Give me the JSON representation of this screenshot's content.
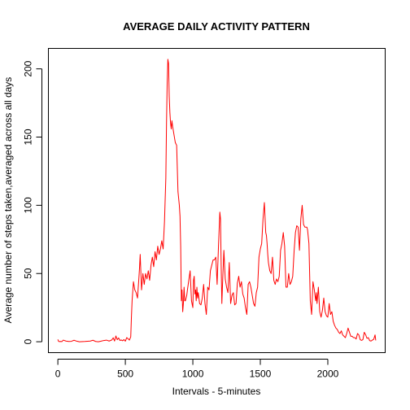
{
  "chart_data": {
    "type": "line",
    "title": "AVERAGE DAILY ACTIVITY PATTERN",
    "xlabel": "Intervals - 5-minutes",
    "ylabel": "Average number of steps taken,averaged across all days",
    "xlim": [
      -70,
      2425
    ],
    "ylim": [
      -8,
      215
    ],
    "x_ticks": [
      0,
      500,
      1000,
      1500,
      2000
    ],
    "y_ticks": [
      0,
      50,
      100,
      150,
      200
    ],
    "line_color": "#ff0000",
    "series": [
      {
        "x": [
          0,
          5,
          10,
          20,
          30,
          40,
          60,
          80,
          100,
          120,
          140,
          160,
          200,
          240,
          260,
          280,
          300,
          320,
          340,
          360,
          380,
          400,
          410,
          420,
          430,
          440,
          450,
          460,
          470,
          480,
          490,
          500,
          510,
          520,
          530,
          540,
          545,
          550,
          560,
          570,
          580,
          590,
          600,
          605,
          610,
          620,
          630,
          640,
          650,
          660,
          670,
          680,
          690,
          700,
          710,
          720,
          730,
          740,
          750,
          760,
          770,
          780,
          790,
          800,
          805,
          810,
          815,
          820,
          825,
          830,
          835,
          840,
          845,
          850,
          860,
          870,
          880,
          890,
          900,
          905,
          910,
          915,
          920,
          925,
          930,
          935,
          940,
          945,
          950,
          955,
          960,
          970,
          980,
          990,
          1000,
          1005,
          1010,
          1015,
          1020,
          1025,
          1030,
          1035,
          1040,
          1050,
          1060,
          1070,
          1080,
          1090,
          1100,
          1110,
          1120,
          1130,
          1140,
          1150,
          1160,
          1170,
          1180,
          1190,
          1200,
          1205,
          1210,
          1215,
          1220,
          1230,
          1240,
          1250,
          1260,
          1270,
          1280,
          1290,
          1300,
          1310,
          1320,
          1330,
          1340,
          1350,
          1360,
          1370,
          1380,
          1390,
          1400,
          1410,
          1420,
          1430,
          1440,
          1450,
          1460,
          1470,
          1480,
          1490,
          1500,
          1510,
          1520,
          1530,
          1540,
          1545,
          1550,
          1555,
          1560,
          1570,
          1580,
          1590,
          1600,
          1610,
          1620,
          1630,
          1640,
          1650,
          1660,
          1670,
          1680,
          1690,
          1700,
          1710,
          1720,
          1730,
          1740,
          1750,
          1760,
          1770,
          1780,
          1790,
          1800,
          1810,
          1820,
          1830,
          1840,
          1845,
          1850,
          1860,
          1870,
          1880,
          1890,
          1900,
          1910,
          1915,
          1920,
          1930,
          1940,
          1950,
          1960,
          1970,
          1980,
          1990,
          2000,
          2010,
          2020,
          2030,
          2040,
          2050,
          2060,
          2070,
          2080,
          2090,
          2100,
          2110,
          2120,
          2130,
          2140,
          2150,
          2160,
          2170,
          2180,
          2190,
          2200,
          2210,
          2220,
          2230,
          2240,
          2250,
          2260,
          2270,
          2280,
          2290,
          2300,
          2310,
          2320,
          2330,
          2340,
          2350,
          2355
        ],
        "y": [
          1.7,
          0.3,
          0.1,
          0.2,
          0.1,
          1.2,
          0.5,
          0.2,
          0.3,
          1.1,
          0.4,
          0.0,
          0.2,
          0.5,
          1.1,
          0.2,
          0.0,
          0.4,
          0.9,
          1.2,
          0.5,
          1.3,
          2.9,
          0.5,
          4.2,
          1.5,
          2.8,
          0.9,
          1.3,
          0.7,
          1.6,
          0.4,
          3.0,
          2.2,
          1.2,
          3.6,
          18,
          30,
          44,
          38,
          36,
          32,
          46,
          54,
          64,
          38,
          50,
          42,
          50,
          46,
          52,
          45,
          56,
          62,
          55,
          66,
          60,
          70,
          64,
          68,
          74,
          68,
          88,
          120,
          160,
          190,
          207,
          204,
          180,
          168,
          160,
          156,
          162,
          158,
          152,
          146,
          144,
          110,
          100,
          92,
          70,
          30,
          38,
          22,
          28,
          40,
          30,
          30,
          32,
          34,
          38,
          45,
          52,
          30,
          25,
          45,
          48,
          35,
          38,
          30,
          40,
          32,
          36,
          28,
          27,
          32,
          42,
          28,
          20,
          40,
          38,
          52,
          56,
          60,
          60,
          62,
          42,
          70,
          95,
          90,
          55,
          28,
          42,
          67,
          46,
          40,
          36,
          58,
          28,
          34,
          36,
          27,
          28,
          43,
          48,
          40,
          44,
          35,
          32,
          25,
          20,
          42,
          44,
          40,
          34,
          28,
          26,
          36,
          40,
          62,
          68,
          72,
          90,
          102,
          80,
          78,
          72,
          64,
          58,
          52,
          50,
          62,
          45,
          42,
          46,
          44,
          48,
          67,
          72,
          80,
          70,
          40,
          40,
          50,
          42,
          44,
          48,
          66,
          80,
          85,
          84,
          67,
          90,
          100,
          86,
          84,
          84,
          84,
          82,
          72,
          30,
          20,
          44,
          38,
          30,
          36,
          28,
          40,
          22,
          18,
          23,
          32,
          22,
          19,
          18,
          28,
          20,
          22,
          15,
          12,
          10,
          9,
          7,
          6,
          8,
          5,
          4,
          3,
          6,
          10,
          7,
          4,
          4,
          3,
          3,
          2,
          6,
          5,
          1.5,
          1.0,
          1.6,
          6.9,
          5.2,
          2.5,
          3.0,
          0.8,
          0.5,
          1.2,
          1.8,
          5.0,
          1.0
        ]
      }
    ]
  }
}
